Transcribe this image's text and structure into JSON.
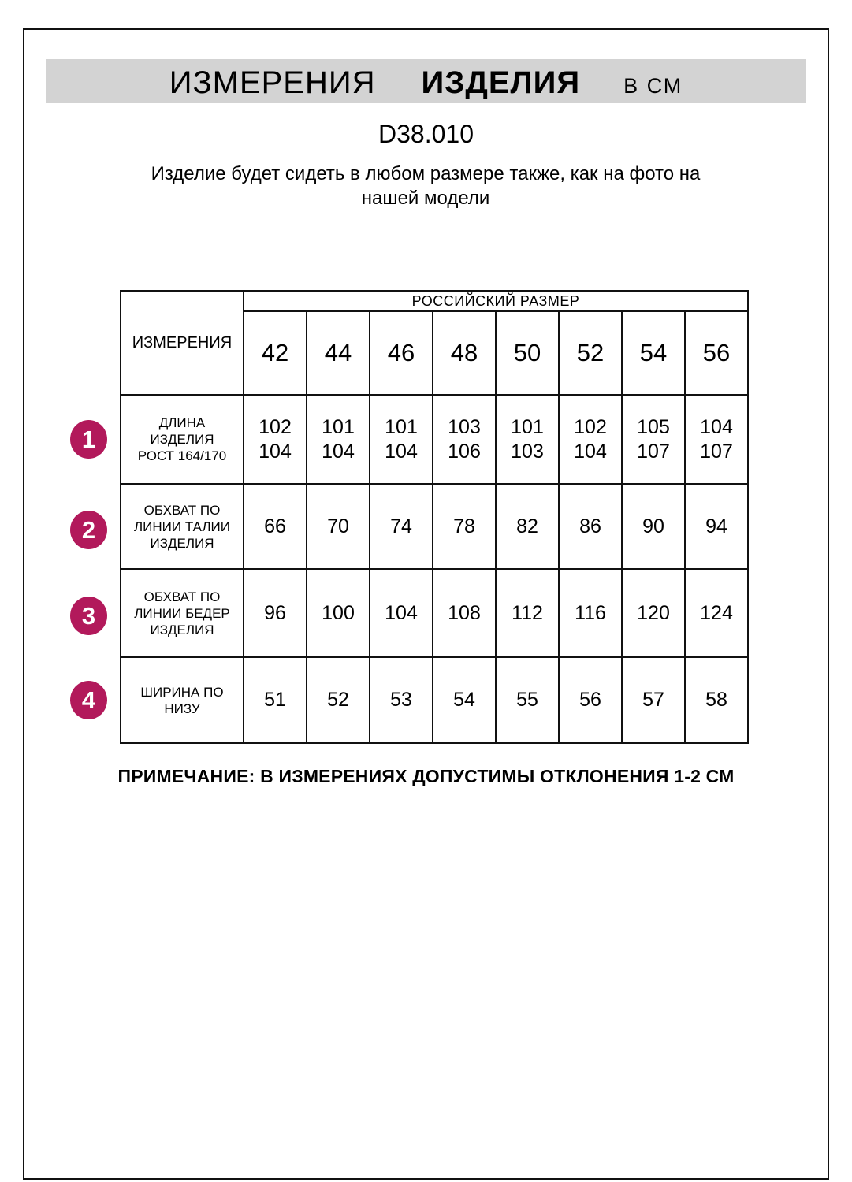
{
  "banner": {
    "title_regular": "ИЗМЕРЕНИЯ",
    "title_bold": "ИЗДЕЛИЯ",
    "unit_label": "В СМ"
  },
  "model_code": "D38.010",
  "subtitle": "Изделие будет сидеть в любом размере также, как на фото на нашей модели",
  "note": "ПРИМЕЧАНИЕ: В ИЗМЕРЕНИЯХ ДОПУСТИМЫ ОТКЛОНЕНИЯ 1-2 СМ",
  "colors": {
    "badge": "#b2195b",
    "banner_bg": "#d3d3d3",
    "table_border": "#111111"
  },
  "size_table": {
    "corner_label": "ИЗМЕРЕНИЯ",
    "group_header": "РОССИЙСКИЙ РАЗМЕР",
    "sizes": [
      "42",
      "44",
      "46",
      "48",
      "50",
      "52",
      "54",
      "56"
    ],
    "rows": [
      {
        "num": "1",
        "label": "ДЛИНА\nИЗДЕЛИЯ\nРОСТ 164/170",
        "values": [
          "102\n104",
          "101\n104",
          "101\n104",
          "103\n106",
          "101\n103",
          "102\n104",
          "105\n107",
          "104\n107"
        ]
      },
      {
        "num": "2",
        "label": "ОБХВАТ ПО\nЛИНИИ ТАЛИИ\nИЗДЕЛИЯ",
        "values": [
          "66",
          "70",
          "74",
          "78",
          "82",
          "86",
          "90",
          "94"
        ]
      },
      {
        "num": "3",
        "label": "ОБХВАТ ПО\nЛИНИИ БЕДЕР\nИЗДЕЛИЯ",
        "values": [
          "96",
          "100",
          "104",
          "108",
          "112",
          "116",
          "120",
          "124"
        ]
      },
      {
        "num": "4",
        "label": "ШИРИНА ПО\nНИЗУ",
        "values": [
          "51",
          "52",
          "53",
          "54",
          "55",
          "56",
          "57",
          "58"
        ]
      }
    ]
  }
}
